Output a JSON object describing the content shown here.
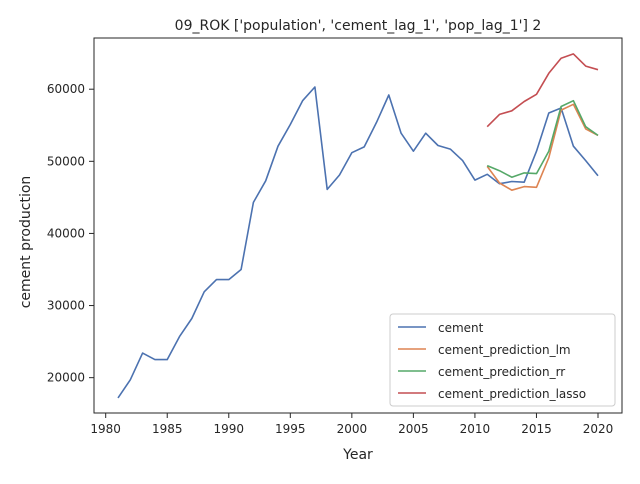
{
  "chart_data": {
    "type": "line",
    "title": "09_ROK ['population', 'cement_lag_1', 'pop_lag_1'] 2",
    "xlabel": "Year",
    "ylabel": "cement production",
    "xlim": [
      1979.05,
      2021.95
    ],
    "ylim": [
      15100,
      67100
    ],
    "xticks": [
      1980,
      1985,
      1990,
      1995,
      2000,
      2005,
      2010,
      2015,
      2020
    ],
    "yticks": [
      20000,
      30000,
      40000,
      50000,
      60000
    ],
    "grid": false,
    "legend_position": "lower-right",
    "series": [
      {
        "name": "cement",
        "color": "#4c72b0",
        "x": [
          1981,
          1982,
          1983,
          1984,
          1985,
          1986,
          1987,
          1988,
          1989,
          1990,
          1991,
          1992,
          1993,
          1994,
          1995,
          1996,
          1997,
          1998,
          1999,
          2000,
          2001,
          2002,
          2003,
          2004,
          2005,
          2006,
          2007,
          2008,
          2009,
          2010,
          2011,
          2012,
          2013,
          2014,
          2015,
          2016,
          2017,
          2018,
          2019,
          2020
        ],
        "y": [
          17200,
          19700,
          23400,
          22500,
          22500,
          25700,
          28200,
          31900,
          33600,
          33600,
          35000,
          44300,
          47300,
          52100,
          55100,
          58400,
          60300,
          46100,
          48100,
          51200,
          52000,
          55400,
          59200,
          53900,
          51400,
          53900,
          52200,
          51700,
          50100,
          47400,
          48200,
          46900,
          47200,
          47100,
          51400,
          56700,
          57400,
          52100,
          50100,
          48000
        ]
      },
      {
        "name": "cement_prediction_lm",
        "color": "#dd8452",
        "x": [
          2011,
          2012,
          2013,
          2014,
          2015,
          2016,
          2017,
          2018,
          2019,
          2020
        ],
        "y": [
          49300,
          47000,
          46000,
          46500,
          46400,
          50500,
          57100,
          57900,
          54500,
          53600
        ]
      },
      {
        "name": "cement_prediction_rr",
        "color": "#55a868",
        "x": [
          2011,
          2012,
          2013,
          2014,
          2015,
          2016,
          2017,
          2018,
          2019,
          2020
        ],
        "y": [
          49400,
          48700,
          47800,
          48400,
          48300,
          51400,
          57600,
          58400,
          54800,
          53600
        ]
      },
      {
        "name": "cement_prediction_lasso",
        "color": "#c44e52",
        "x": [
          2011,
          2012,
          2013,
          2014,
          2015,
          2016,
          2017,
          2018,
          2019,
          2020
        ],
        "y": [
          54800,
          56500,
          57000,
          58300,
          59300,
          62200,
          64300,
          64900,
          63200,
          62700
        ]
      }
    ]
  }
}
